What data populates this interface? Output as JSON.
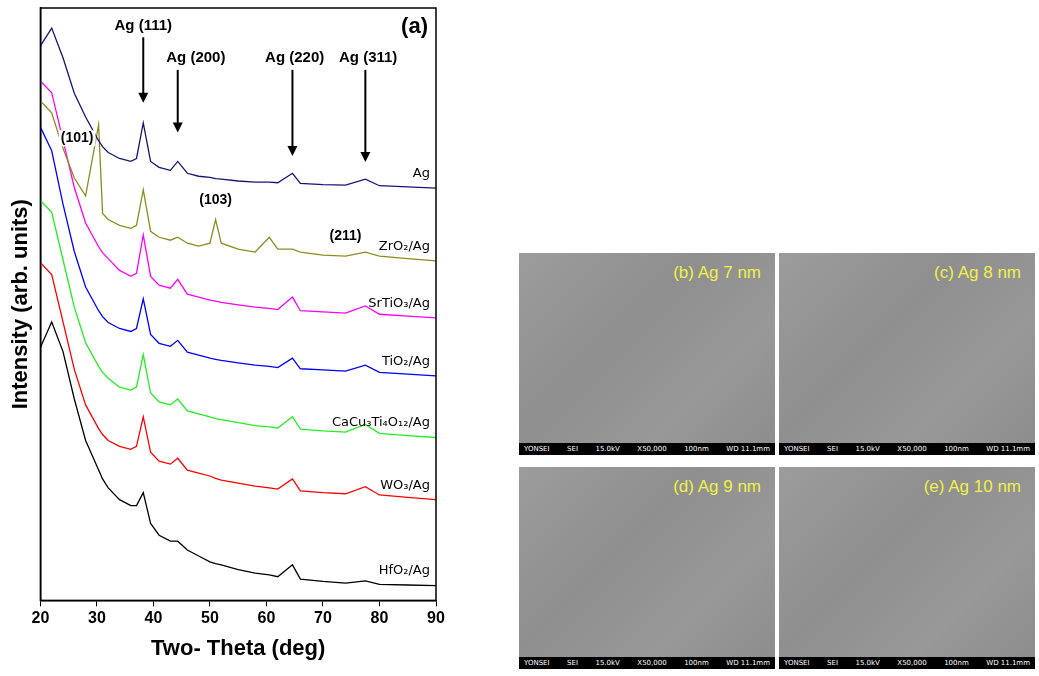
{
  "chart_data": {
    "type": "line",
    "x_label": "Two- Theta (deg)",
    "y_label": "Intensity (arb. units)",
    "panel_label": "(a)",
    "xlim": [
      20,
      90
    ],
    "xticks": [
      20,
      30,
      40,
      50,
      60,
      70,
      80,
      90
    ],
    "ylim": [
      0,
      100
    ],
    "tick_labels": "x",
    "grid": false,
    "x": [
      20,
      22,
      24,
      26,
      28,
      30.3,
      31,
      32,
      34,
      36,
      37,
      38.2,
      39.5,
      41,
      43,
      44.3,
      46,
      48,
      50,
      51,
      52,
      55,
      58,
      60.5,
      62,
      64.6,
      66,
      70,
      74,
      77.5,
      80,
      85,
      90
    ],
    "series": [
      {
        "name": "Ag",
        "color": "#141478",
        "values": [
          93.6,
          96.6,
          91.6,
          85.6,
          81.6,
          77.6,
          76.6,
          75.6,
          74.6,
          74.1,
          74.6,
          80.6,
          74.1,
          73.1,
          72.6,
          74.1,
          72.1,
          71.6,
          71.4,
          71.2,
          71.1,
          70.8,
          70.6,
          70.6,
          70.5,
          72.1,
          70.4,
          70.2,
          70.1,
          71.1,
          70.0,
          69.8,
          69.6
        ]
      },
      {
        "name": "ZrO₂/Ag",
        "color": "#8c8c1e",
        "values": [
          84.3,
          82.3,
          76.3,
          71.3,
          68.3,
          80.3,
          65.3,
          64.3,
          63.3,
          62.8,
          63.3,
          69.3,
          62.3,
          61.3,
          60.8,
          61.3,
          60.3,
          59.8,
          60.3,
          64.3,
          60.3,
          59.3,
          58.8,
          61.3,
          59.3,
          59.3,
          58.8,
          58.3,
          58.1,
          58.8,
          58.1,
          57.7,
          57.3
        ]
      },
      {
        "name": "SrTiO₃/Ag",
        "color": "#ff00ff",
        "values": [
          87.7,
          85.7,
          77.7,
          69.7,
          63.7,
          59.7,
          58.7,
          57.7,
          55.7,
          54.7,
          55.2,
          61.7,
          54.7,
          53.2,
          52.7,
          54.2,
          51.7,
          51.2,
          50.7,
          50.5,
          50.3,
          49.9,
          49.5,
          49.3,
          49.1,
          51.2,
          48.9,
          48.7,
          48.5,
          49.7,
          48.3,
          48.0,
          47.7
        ]
      },
      {
        "name": "TiO₂/Ag",
        "color": "#0000ff",
        "values": [
          79.9,
          75.9,
          66.9,
          58.9,
          52.9,
          48.9,
          47.9,
          46.9,
          45.9,
          45.4,
          45.9,
          50.9,
          44.9,
          43.4,
          42.9,
          43.9,
          41.9,
          41.4,
          40.9,
          40.7,
          40.5,
          40.1,
          39.7,
          39.5,
          39.3,
          40.9,
          39.1,
          38.9,
          38.7,
          39.7,
          38.5,
          38.2,
          37.9
        ]
      },
      {
        "name": "CaCu₃Ti₄O₁₂/Ag",
        "color": "#22ee22",
        "values": [
          67.5,
          65.5,
          57.5,
          49.5,
          43.5,
          39.5,
          38.5,
          37.5,
          36.0,
          35.5,
          36.0,
          41.5,
          35.0,
          33.5,
          33.0,
          34.0,
          32.0,
          31.5,
          31.0,
          30.7,
          30.5,
          30.0,
          29.5,
          29.3,
          29.1,
          31.0,
          28.9,
          28.6,
          28.4,
          29.7,
          28.2,
          27.8,
          27.5
        ]
      },
      {
        "name": "WO₃/Ag",
        "color": "#ff0000",
        "values": [
          57.0,
          55.0,
          47.0,
          39.0,
          33.0,
          29.0,
          28.0,
          27.0,
          26.0,
          25.5,
          26.0,
          31.0,
          25.0,
          23.5,
          23.0,
          24.0,
          22.0,
          21.5,
          21.0,
          20.6,
          20.3,
          19.8,
          19.3,
          19.0,
          18.8,
          20.5,
          18.5,
          18.2,
          18.0,
          19.2,
          17.8,
          17.4,
          17.0
        ]
      },
      {
        "name": "HfO₂/Ag",
        "color": "#000000",
        "values": [
          42.7,
          47.0,
          42.0,
          34.0,
          27.0,
          22.0,
          20.5,
          19.0,
          17.0,
          16.0,
          16.0,
          18.2,
          13.0,
          11.0,
          10.0,
          10.0,
          8.5,
          7.5,
          6.5,
          6.2,
          6.0,
          5.2,
          4.6,
          4.3,
          4.0,
          6.0,
          3.6,
          3.2,
          2.9,
          3.3,
          2.7,
          2.6,
          2.5
        ]
      }
    ],
    "annotations": [
      {
        "text": "Ag (111)",
        "x": 38.2,
        "y": 97,
        "arrow": true,
        "arrow_x": 38.2,
        "arrow_y": 84
      },
      {
        "text": "Ag (200)",
        "x": 47.5,
        "y": 91.5,
        "arrow": true,
        "arrow_x": 44.3,
        "arrow_y": 79
      },
      {
        "text": "Ag (220)",
        "x": 65,
        "y": 91.5,
        "arrow": true,
        "arrow_x": 64.6,
        "arrow_y": 75
      },
      {
        "text": "Ag (311)",
        "x": 78,
        "y": 91.5,
        "arrow": true,
        "arrow_x": 77.5,
        "arrow_y": 74
      },
      {
        "text": "(101)",
        "x": 26.5,
        "y": 78,
        "arrow": false
      },
      {
        "text": "(103)",
        "x": 51,
        "y": 67.5,
        "arrow": false
      },
      {
        "text": "(211)",
        "x": 74,
        "y": 61.5,
        "arrow": false
      }
    ]
  },
  "sem_images": [
    {
      "label": "(b) Ag 7 nm",
      "footer": [
        "YONSEI",
        "SEI",
        "15.0kV",
        "X50,000",
        "100nm",
        "WD 11.1mm"
      ]
    },
    {
      "label": "(c) Ag 8 nm",
      "footer": [
        "YONSEI",
        "SEI",
        "15.0kV",
        "X50,000",
        "100nm",
        "WD 11.1mm"
      ]
    },
    {
      "label": "(d) Ag 9 nm",
      "footer": [
        "YONSEI",
        "SEI",
        "15.0kV",
        "X50,000",
        "100nm",
        "WD 11.1mm"
      ]
    },
    {
      "label": "(e) Ag 10 nm",
      "footer": [
        "YONSEI",
        "SEI",
        "15.0kV",
        "X50,000",
        "100nm",
        "WD 11.1mm"
      ]
    }
  ]
}
